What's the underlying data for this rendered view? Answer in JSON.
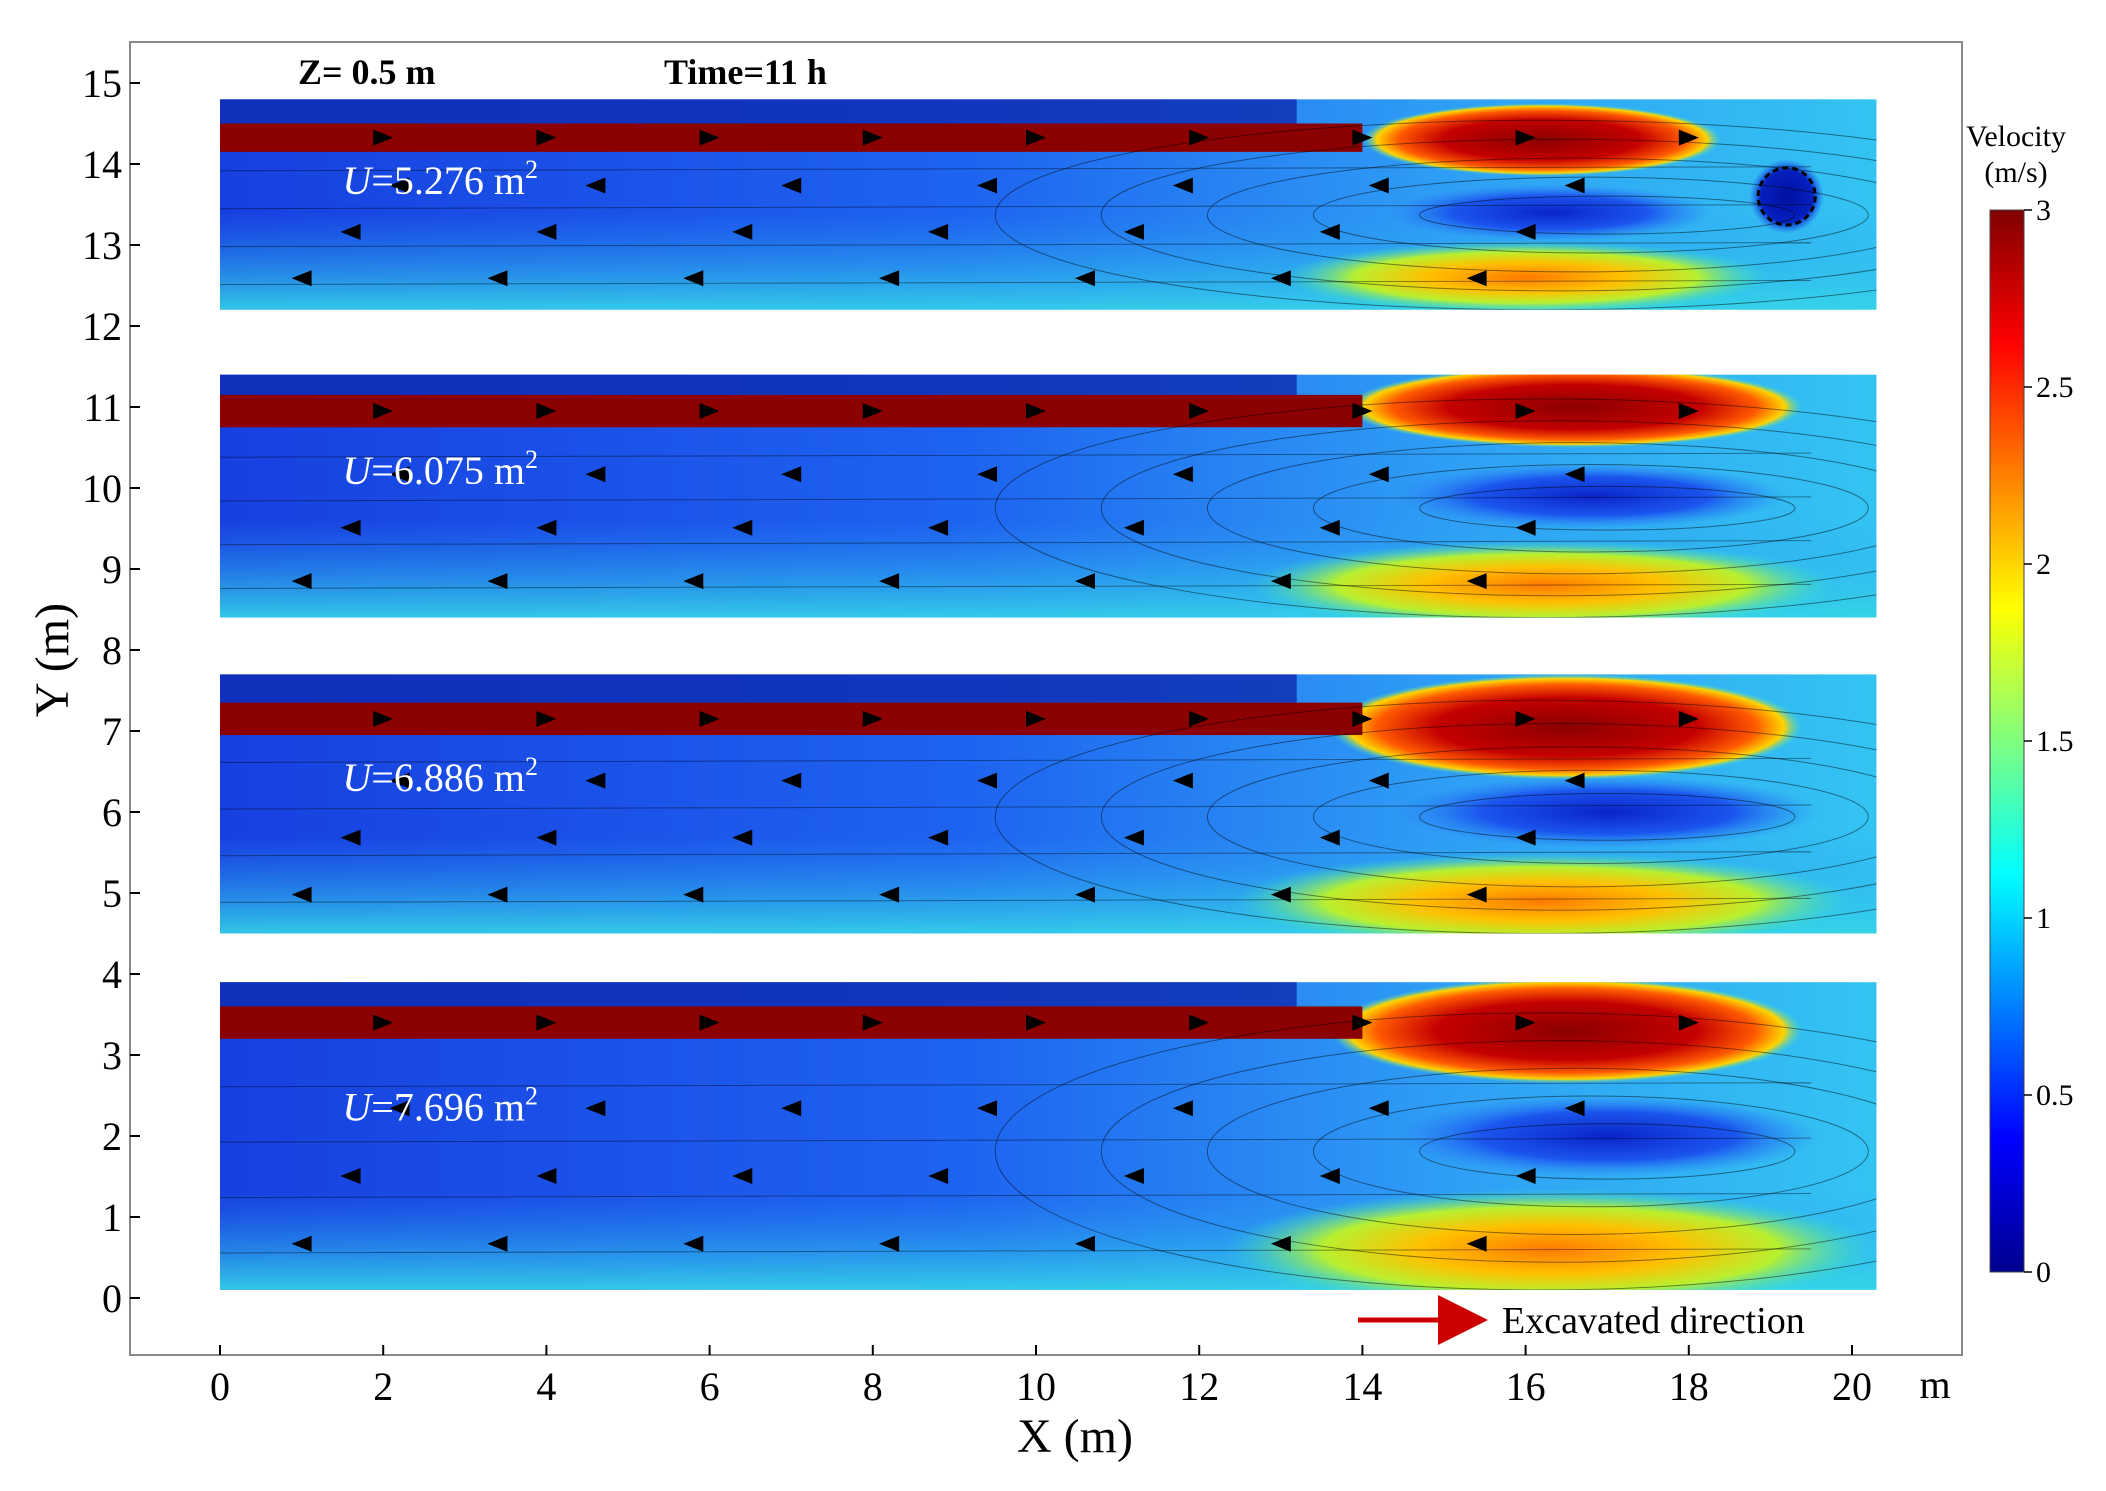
{
  "chart_data": {
    "type": "heatmap",
    "header": {
      "depth_label": "Z= 0.5 m",
      "time_label": "Time=11 h"
    },
    "xlabel": "X (m)",
    "ylabel": "Y (m)",
    "x_unit": "m",
    "xlim": [
      -1.1,
      21.4
    ],
    "ylim": [
      -0.7,
      15.3
    ],
    "x_ticks": [
      0,
      2,
      4,
      6,
      8,
      10,
      12,
      14,
      16,
      18,
      20
    ],
    "y_ticks": [
      0,
      1,
      2,
      3,
      4,
      5,
      6,
      7,
      8,
      9,
      10,
      11,
      12,
      13,
      14,
      15
    ],
    "colorbar": {
      "title_line1": "Velocity",
      "title_line2": "(m/s)",
      "range": [
        0,
        3
      ],
      "ticks": [
        0,
        0.5,
        1,
        1.5,
        2,
        2.5,
        3
      ],
      "colormap": "jet"
    },
    "panels": [
      {
        "label_var": "U",
        "label_value": "=5.276 m",
        "label_exp": "2",
        "y_range": [
          12.2,
          14.8
        ],
        "jet_y": [
          14.15,
          14.5
        ],
        "jet_end_x": 14.0,
        "hot_zone": {
          "x": 16.2,
          "y": 14.3,
          "rx": 2.2,
          "ry": 0.45
        },
        "bottom_zone": {
          "x": 16.0,
          "y": 12.6,
          "rx": 3.0,
          "ry": 0.45
        },
        "low_zone": {
          "x": 16.3,
          "y": 13.4,
          "rx": 2.0,
          "ry": 0.35
        },
        "eddy": {
          "x": 19.2,
          "y": 13.6,
          "r": 0.35
        }
      },
      {
        "label_var": "U",
        "label_value": "=6.075 m",
        "label_exp": "2",
        "y_range": [
          8.4,
          11.4
        ],
        "jet_y": [
          10.75,
          11.15
        ],
        "jet_end_x": 14.0,
        "hot_zone": {
          "x": 16.6,
          "y": 11.0,
          "rx": 2.8,
          "ry": 0.5
        },
        "bottom_zone": {
          "x": 16.2,
          "y": 8.8,
          "rx": 3.6,
          "ry": 0.55
        },
        "low_zone": {
          "x": 16.8,
          "y": 9.9,
          "rx": 2.4,
          "ry": 0.4
        },
        "eddy": null
      },
      {
        "label_var": "U",
        "label_value": "=6.886 m",
        "label_exp": "2",
        "y_range": [
          4.5,
          7.7
        ],
        "jet_y": [
          6.95,
          7.35
        ],
        "jet_end_x": 14.0,
        "hot_zone": {
          "x": 16.5,
          "y": 7.05,
          "rx": 2.9,
          "ry": 0.65
        },
        "bottom_zone": {
          "x": 16.2,
          "y": 4.9,
          "rx": 3.8,
          "ry": 0.6
        },
        "low_zone": {
          "x": 17.0,
          "y": 6.0,
          "rx": 2.6,
          "ry": 0.45
        },
        "eddy": null
      },
      {
        "label_var": "U",
        "label_value": "=7.696 m",
        "label_exp": "2",
        "y_range": [
          0.1,
          3.9
        ],
        "jet_y": [
          3.2,
          3.6
        ],
        "jet_end_x": 14.0,
        "hot_zone": {
          "x": 16.5,
          "y": 3.3,
          "rx": 2.9,
          "ry": 0.65
        },
        "bottom_zone": {
          "x": 16.3,
          "y": 0.6,
          "rx": 4.0,
          "ry": 0.75
        },
        "low_zone": {
          "x": 17.0,
          "y": 2.0,
          "rx": 2.6,
          "ry": 0.5
        },
        "eddy": null
      }
    ],
    "annotation": "Excavated direction",
    "colors": {
      "jet_red": "#8b0000",
      "arrow": "#cc0000",
      "vmin": "#0a1a8c"
    }
  }
}
